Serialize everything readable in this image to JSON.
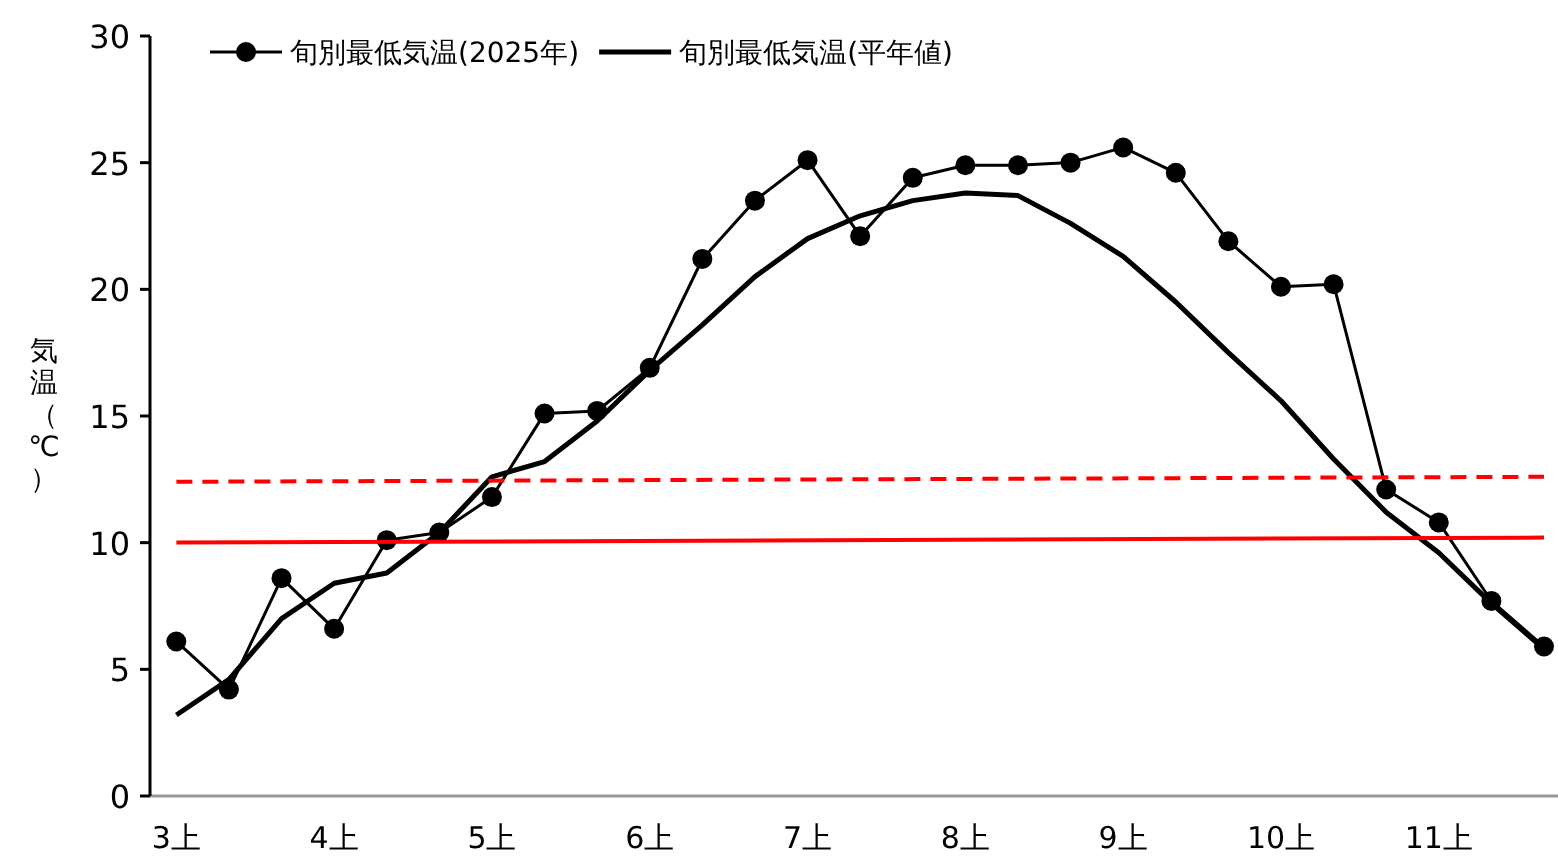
{
  "chart_data": {
    "type": "line",
    "ylabel": "気温（℃）",
    "categories": [
      "3上",
      null,
      null,
      "4上",
      null,
      null,
      "5上",
      null,
      null,
      "6上",
      null,
      null,
      "7上",
      null,
      null,
      "8上",
      null,
      null,
      "9上",
      null,
      null,
      "10上",
      null,
      null,
      "11上",
      null,
      null
    ],
    "ylim": [
      0,
      30
    ],
    "yticks": [
      0,
      5,
      10,
      15,
      20,
      25,
      30
    ],
    "grid": false,
    "legend": "top",
    "series": [
      {
        "name": "旬別最低気温(2025年)",
        "color": "#000000",
        "marker": "circle",
        "line_style": "solid",
        "values": [
          6.1,
          4.2,
          8.6,
          6.6,
          10.1,
          10.4,
          11.8,
          15.1,
          15.2,
          16.9,
          21.2,
          23.5,
          25.1,
          22.1,
          24.4,
          24.9,
          24.9,
          25.0,
          25.6,
          24.6,
          21.9,
          20.1,
          20.2,
          12.1,
          10.8,
          7.7,
          5.9
        ]
      },
      {
        "name": "旬別最低気温(平年値)",
        "color": "#000000",
        "marker": "none",
        "line_style": "solid",
        "values": [
          3.2,
          4.6,
          7.0,
          8.4,
          8.8,
          10.4,
          12.6,
          13.2,
          14.8,
          16.8,
          18.6,
          20.5,
          22.0,
          22.9,
          23.5,
          23.8,
          23.7,
          22.6,
          21.3,
          19.5,
          17.5,
          15.6,
          13.3,
          11.2,
          9.6,
          7.6,
          5.8
        ]
      },
      {
        "color": "#ff0000",
        "marker": "none",
        "line_style": "dashed",
        "values": [
          12.4,
          null,
          null,
          null,
          null,
          null,
          null,
          null,
          null,
          null,
          null,
          null,
          null,
          null,
          null,
          null,
          null,
          null,
          null,
          null,
          null,
          null,
          null,
          null,
          null,
          null,
          12.6
        ]
      },
      {
        "color": "#ff0000",
        "marker": "none",
        "line_style": "solid",
        "values": [
          10.0,
          null,
          null,
          null,
          null,
          null,
          null,
          null,
          null,
          null,
          null,
          null,
          null,
          null,
          null,
          null,
          null,
          null,
          null,
          null,
          null,
          null,
          null,
          null,
          null,
          null,
          10.2
        ]
      }
    ]
  }
}
